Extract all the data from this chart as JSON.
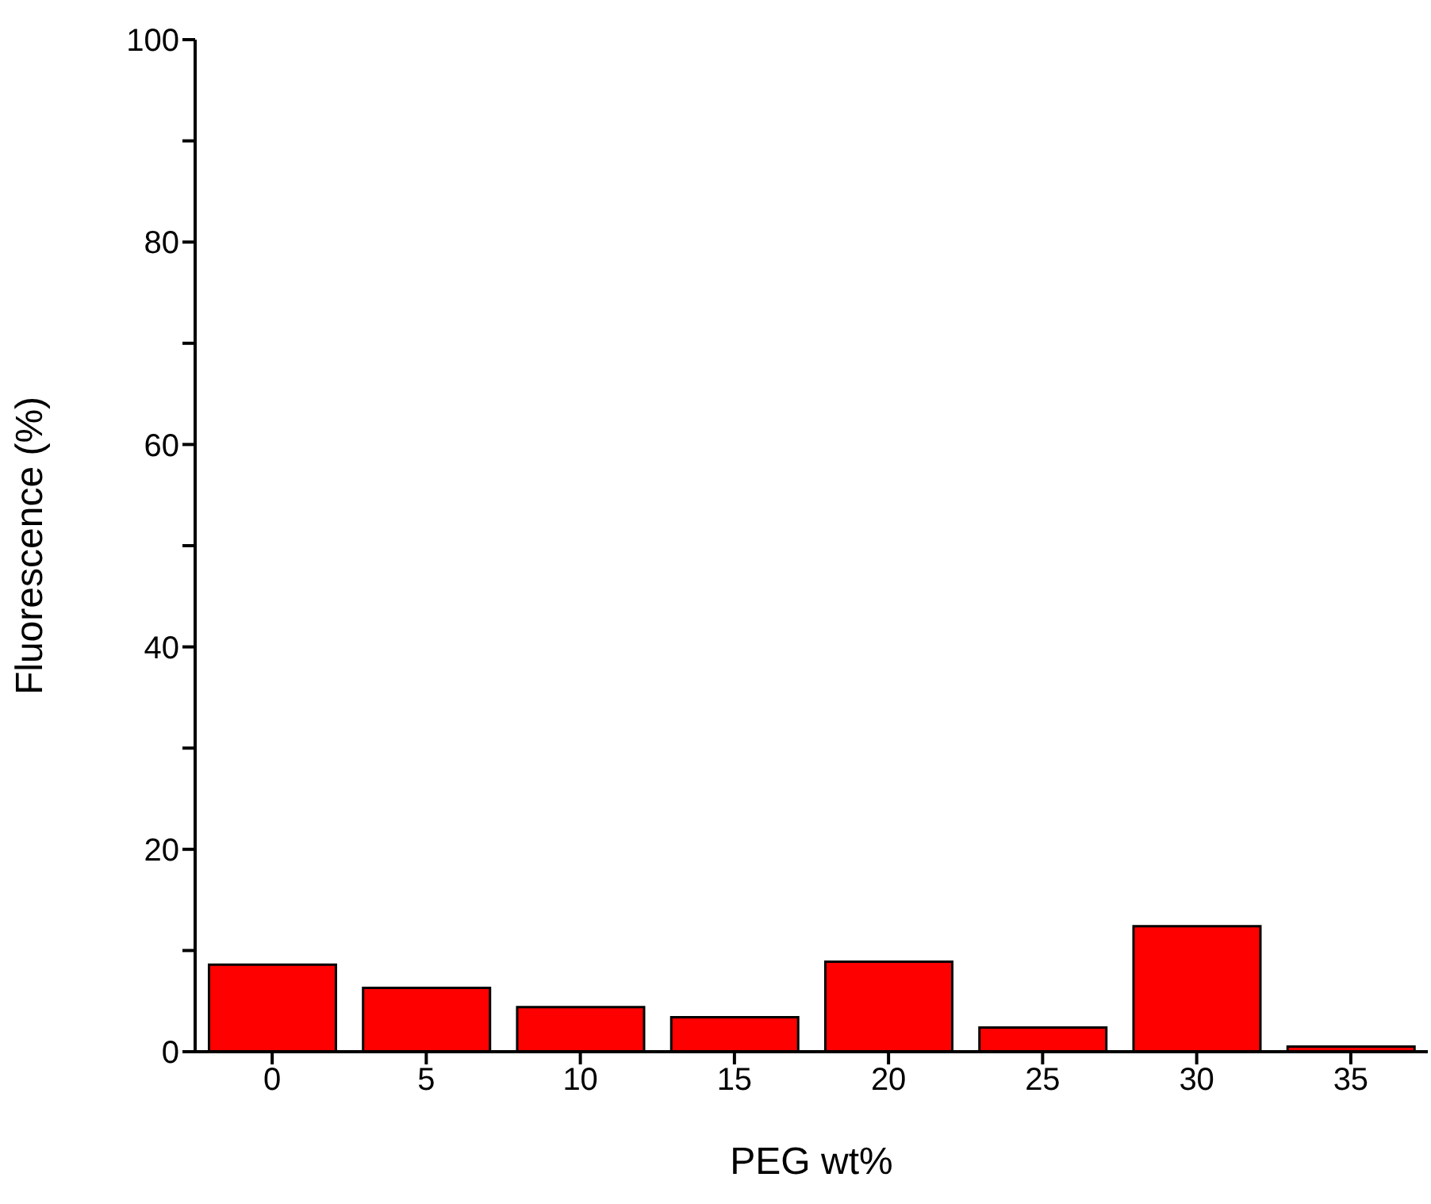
{
  "chart_data": {
    "type": "bar",
    "xlabel": "PEG wt%",
    "ylabel": "Fluorescence (%)",
    "categories": [
      "0",
      "5",
      "10",
      "15",
      "20",
      "25",
      "30",
      "35"
    ],
    "values": [
      8.6,
      6.3,
      4.4,
      3.4,
      8.9,
      2.4,
      12.4,
      0.5
    ],
    "color": "#ff0000",
    "ylim": [
      0,
      100
    ],
    "yticks": [
      0,
      {
        "value": 10,
        "label": null
      },
      20,
      {
        "value": 30,
        "label": null
      },
      40,
      {
        "value": 50,
        "label": null
      },
      60,
      {
        "value": 70,
        "label": null
      },
      80,
      {
        "value": 90,
        "label": null
      },
      100
    ],
    "grid": false,
    "legend": false
  }
}
